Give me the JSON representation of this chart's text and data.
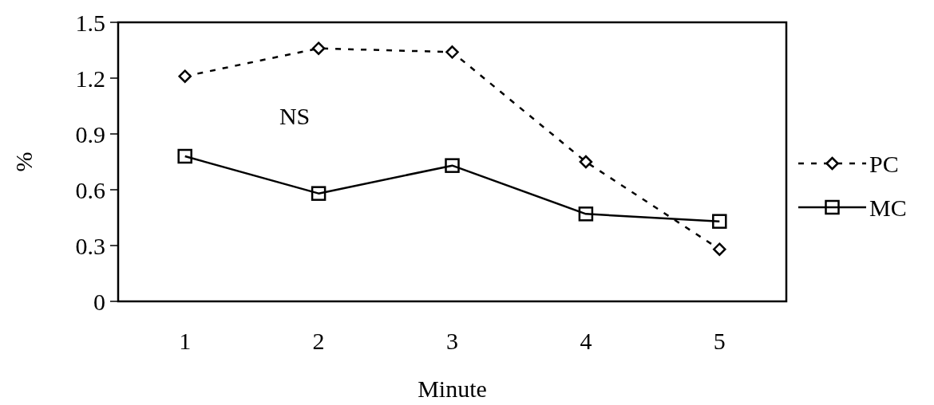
{
  "chart_data": {
    "type": "line",
    "xlabel": "Minute",
    "ylabel": "%",
    "categories": [
      "1",
      "2",
      "3",
      "4",
      "5"
    ],
    "series": [
      {
        "name": "PC",
        "color": "#000000",
        "values": [
          1.21,
          1.36,
          1.34,
          0.75,
          0.28
        ],
        "marker": "diamond",
        "line_style": "dashed"
      },
      {
        "name": "MC",
        "color": "#000000",
        "values": [
          0.78,
          0.58,
          0.73,
          0.47,
          0.43
        ],
        "marker": "square",
        "line_style": "solid"
      }
    ],
    "ylim": [
      0,
      1.5
    ],
    "yticks": [
      0,
      0.3,
      0.6,
      0.9,
      1.2,
      1.5
    ],
    "annotations": [
      "NS"
    ],
    "legend": "right",
    "grid": false
  }
}
